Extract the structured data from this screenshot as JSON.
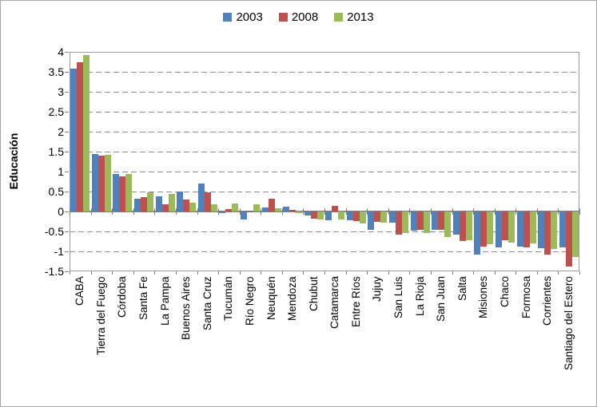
{
  "chart_data": {
    "type": "bar",
    "title": "",
    "ylabel": "Educación",
    "xlabel": "",
    "ylim": [
      -1.5,
      4
    ],
    "ytick_step": 0.5,
    "y_ticks": [
      "4",
      "3.5",
      "3",
      "2.5",
      "2",
      "1.5",
      "1",
      "0.5",
      "0",
      "-0.5",
      "-1",
      "-1.5"
    ],
    "grid": "dashed-horizontal",
    "legend_position": "top",
    "categories": [
      "CABA",
      "Tierra del Fuego",
      "Córdoba",
      "Santa Fe",
      "La Pampa",
      "Buenos Aires",
      "Santa Cruz",
      "Tucumán",
      "Río Negro",
      "Neuquén",
      "Mendoza",
      "Chubut",
      "Catamarca",
      "Entre Ríos",
      "Jujuy",
      "San Luis",
      "La Rioja",
      "San Juan",
      "Salta",
      "Misiones",
      "Chaco",
      "Formosa",
      "Corrientes",
      "Santiago del Estero"
    ],
    "series": [
      {
        "name": "2003",
        "color": "#4F81BD",
        "values": [
          3.58,
          1.44,
          0.94,
          0.33,
          0.38,
          0.5,
          0.71,
          -0.04,
          -0.19,
          0.11,
          0.12,
          -0.09,
          -0.22,
          -0.21,
          -0.45,
          -0.27,
          -0.47,
          -0.45,
          -0.57,
          -1.08,
          -0.89,
          -0.87,
          -0.92,
          -0.89
        ]
      },
      {
        "name": "2008",
        "color": "#C0504D",
        "values": [
          3.74,
          1.41,
          0.88,
          0.37,
          0.19,
          0.31,
          0.48,
          0.07,
          0.01,
          0.33,
          0.04,
          -0.17,
          0.14,
          -0.24,
          -0.25,
          -0.58,
          -0.45,
          -0.45,
          -0.73,
          -0.88,
          -0.72,
          -0.9,
          -1.08,
          -1.37
        ]
      },
      {
        "name": "2013",
        "color": "#9BBB59",
        "values": [
          3.93,
          1.43,
          0.95,
          0.49,
          0.45,
          0.23,
          0.18,
          0.2,
          0.18,
          0.09,
          -0.03,
          -0.19,
          -0.2,
          -0.29,
          -0.28,
          -0.53,
          -0.53,
          -0.63,
          -0.71,
          -0.81,
          -0.77,
          -0.8,
          -0.94,
          -1.14
        ]
      }
    ]
  },
  "figure": {
    "background_color": "#FFFFFF",
    "border_color": "#A6A6A6",
    "gridline_color": "#8C8C8C",
    "axis_color": "#808080"
  }
}
